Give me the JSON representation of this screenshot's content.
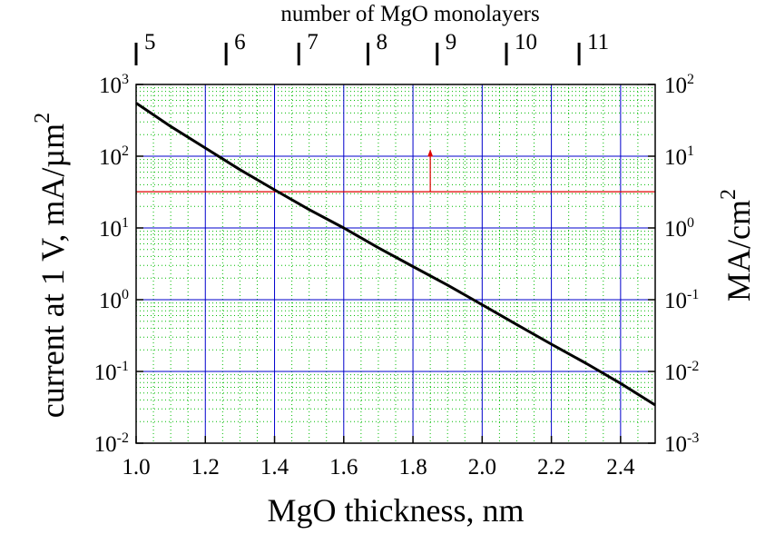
{
  "chart_data": {
    "type": "line",
    "x_axis": {
      "label": "MgO thickness, nm",
      "range": [
        1.0,
        2.5
      ],
      "ticks": [
        1.0,
        1.2,
        1.4,
        1.6,
        1.8,
        2.0,
        2.2,
        2.4
      ],
      "tick_labels": [
        "1.0",
        "1.2",
        "1.4",
        "1.6",
        "1.8",
        "2.0",
        "2.2",
        "2.4"
      ]
    },
    "y_axis_left": {
      "label": "current at 1 V, mA/µm",
      "label_superscript": "2",
      "scale": "log",
      "range": [
        0.01,
        1000
      ],
      "ticks": [
        {
          "base": "10",
          "exponent": "-2",
          "value": 0.01
        },
        {
          "base": "10",
          "exponent": "-1",
          "value": 0.1
        },
        {
          "base": "10",
          "exponent": "0",
          "value": 1
        },
        {
          "base": "10",
          "exponent": "1",
          "value": 10
        },
        {
          "base": "10",
          "exponent": "2",
          "value": 100
        },
        {
          "base": "10",
          "exponent": "3",
          "value": 1000
        }
      ]
    },
    "y_axis_right": {
      "label": "MA/cm",
      "label_superscript": "2",
      "scale": "log",
      "range": [
        0.001,
        100
      ],
      "ticks": [
        {
          "base": "10",
          "exponent": "-3",
          "value": 0.001
        },
        {
          "base": "10",
          "exponent": "-2",
          "value": 0.01
        },
        {
          "base": "10",
          "exponent": "-1",
          "value": 0.1
        },
        {
          "base": "10",
          "exponent": "0",
          "value": 1
        },
        {
          "base": "10",
          "exponent": "1",
          "value": 10
        },
        {
          "base": "10",
          "exponent": "2",
          "value": 100
        }
      ]
    },
    "x_axis_top": {
      "label": "number of MgO monolayers",
      "ticks": [
        {
          "label": "5",
          "x": 1.0
        },
        {
          "label": "6",
          "x": 1.26
        },
        {
          "label": "7",
          "x": 1.47
        },
        {
          "label": "8",
          "x": 1.67
        },
        {
          "label": "9",
          "x": 1.87
        },
        {
          "label": "10",
          "x": 2.07
        },
        {
          "label": "11",
          "x": 2.28
        }
      ]
    },
    "series": [
      {
        "color": "#000000",
        "x": [
          1.0,
          1.1,
          1.2,
          1.3,
          1.4,
          1.5,
          1.6,
          1.7,
          1.8,
          1.9,
          2.0,
          2.1,
          2.2,
          2.3,
          2.4,
          2.5
        ],
        "y": [
          550,
          260,
          130,
          65,
          34,
          18,
          10,
          5.3,
          2.9,
          1.6,
          0.85,
          0.45,
          0.24,
          0.13,
          0.068,
          0.034
        ]
      }
    ],
    "annotations": [
      {
        "type": "hline",
        "y": 32,
        "color": "#e00000"
      },
      {
        "type": "arrow",
        "x": 1.85,
        "y_from": 32,
        "y_to": 125,
        "color": "#e00000"
      }
    ],
    "grid": true,
    "colors": {
      "major_grid": "#0000cc",
      "minor_grid": "#00bb00",
      "curve": "#000000",
      "threshold": "#e00000"
    }
  }
}
